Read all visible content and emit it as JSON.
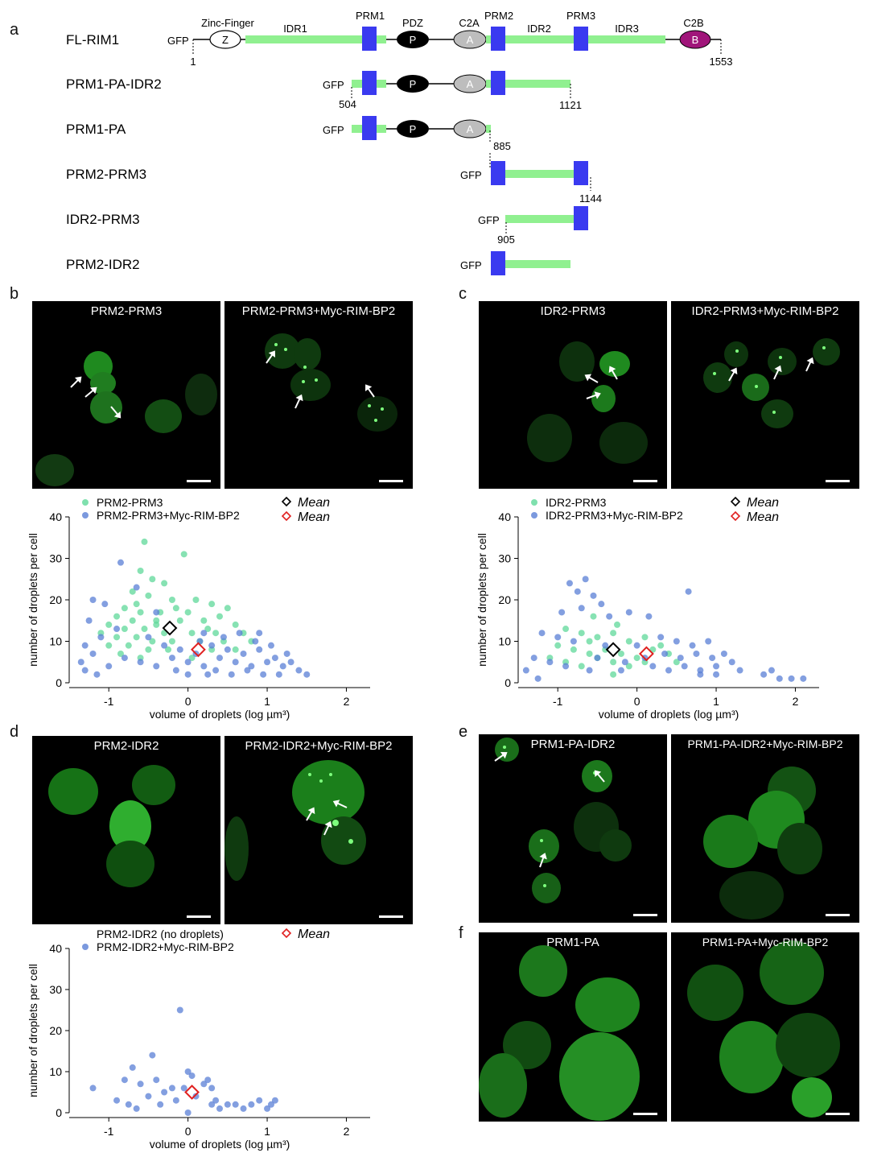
{
  "panel_letters": {
    "a": "a",
    "b": "b",
    "c": "c",
    "d": "d",
    "e": "e",
    "f": "f"
  },
  "domain_labels": {
    "zinc_finger": "Zinc-Finger",
    "idr1": "IDR1",
    "prm1": "PRM1",
    "pdz": "PDZ",
    "c2a": "C2A",
    "prm2": "PRM2",
    "idr2": "IDR2",
    "prm3": "PRM3",
    "idr3": "IDR3",
    "c2b": "C2B",
    "z": "Z",
    "p": "P",
    "a": "A",
    "b": "B",
    "gfp": "GFP"
  },
  "constructs": [
    {
      "name": "FL-RIM1",
      "start": "1",
      "end": "1553"
    },
    {
      "name": "PRM1-PA-IDR2",
      "start": "504",
      "end": "1121"
    },
    {
      "name": "PRM1-PA",
      "end": "885"
    },
    {
      "name": "PRM2-PRM3",
      "end": "1144"
    },
    {
      "name": "IDR2-PRM3",
      "start": "905"
    },
    {
      "name": "PRM2-IDR2"
    }
  ],
  "micrographs": {
    "b1": "PRM2-PRM3",
    "b2": "PRM2-PRM3+Myc-RIM-BP2",
    "c1": "IDR2-PRM3",
    "c2": "IDR2-PRM3+Myc-RIM-BP2",
    "d1": "PRM2-IDR2",
    "d2": "PRM2-IDR2+Myc-RIM-BP2",
    "e1": "PRM1-PA-IDR2",
    "e2": "PRM1-PA-IDR2+Myc-RIM-BP2",
    "f1": "PRM1-PA",
    "f2": "PRM1-PA+Myc-RIM-BP2"
  },
  "colors": {
    "green_series": "#5fd89a",
    "blue_series": "#5a7fd6",
    "mean_black": "#000000",
    "mean_red": "#e02020",
    "idr_bar": "#90f090",
    "prm_box": "#3a3af0",
    "c2b_fill": "#a0157a"
  },
  "chart_data": [
    {
      "id": "b",
      "type": "scatter",
      "xlabel": "volume of droplets (log µm³)",
      "ylabel": "number of droplets per cell",
      "xlim": [
        -1.5,
        2.3
      ],
      "ylim": [
        0,
        40
      ],
      "xticks": [
        -1,
        0,
        1,
        2
      ],
      "yticks": [
        0,
        10,
        20,
        30,
        40
      ],
      "legend": [
        {
          "label": "PRM2-PRM3",
          "color": "#5fd89a",
          "marker": "dot"
        },
        {
          "label": "PRM2-PRM3+Myc-RIM-BP2",
          "color": "#5a7fd6",
          "marker": "dot"
        },
        {
          "label": "Mean",
          "color": "#000000",
          "marker": "diamond"
        },
        {
          "label": "Mean",
          "color": "#e02020",
          "marker": "diamond"
        }
      ],
      "means": [
        {
          "series": "PRM2-PRM3",
          "x": -0.23,
          "y": 13.2
        },
        {
          "series": "PRM2-PRM3+Myc-RIM-BP2",
          "x": 0.13,
          "y": 8
        }
      ],
      "series": [
        {
          "name": "PRM2-PRM3",
          "color": "#5fd89a",
          "points": [
            [
              -0.55,
              34
            ],
            [
              -0.05,
              31
            ],
            [
              -0.6,
              27
            ],
            [
              -0.45,
              25
            ],
            [
              -0.3,
              24
            ],
            [
              -0.7,
              22
            ],
            [
              -0.5,
              21
            ],
            [
              -0.2,
              20
            ],
            [
              0.1,
              20
            ],
            [
              0.3,
              19
            ],
            [
              -0.8,
              18
            ],
            [
              -0.6,
              17
            ],
            [
              -0.35,
              17
            ],
            [
              0,
              17
            ],
            [
              0.4,
              16
            ],
            [
              0.5,
              18
            ],
            [
              -0.9,
              16
            ],
            [
              -0.7,
              15
            ],
            [
              -0.4,
              15
            ],
            [
              -0.1,
              15
            ],
            [
              0.2,
              15
            ],
            [
              0.6,
              14
            ],
            [
              -1.0,
              14
            ],
            [
              -0.8,
              13
            ],
            [
              -0.55,
              13
            ],
            [
              -0.3,
              12
            ],
            [
              0.05,
              12
            ],
            [
              0.35,
              12
            ],
            [
              0.7,
              12
            ],
            [
              -1.1,
              12
            ],
            [
              -0.9,
              11
            ],
            [
              -0.65,
              11
            ],
            [
              -0.45,
              10
            ],
            [
              -0.2,
              10
            ],
            [
              0.15,
              10
            ],
            [
              0.45,
              10
            ],
            [
              0.8,
              10
            ],
            [
              -1.0,
              9
            ],
            [
              -0.75,
              9
            ],
            [
              -0.5,
              8
            ],
            [
              -0.25,
              8
            ],
            [
              0.3,
              8
            ],
            [
              0.6,
              8
            ],
            [
              -0.85,
              7
            ],
            [
              -0.6,
              6
            ],
            [
              0.05,
              6
            ],
            [
              -0.4,
              14
            ],
            [
              0.25,
              13
            ],
            [
              -0.15,
              18
            ],
            [
              -0.65,
              19
            ]
          ]
        },
        {
          "name": "PRM2-PRM3+Myc-RIM-BP2",
          "color": "#5a7fd6",
          "points": [
            [
              -0.85,
              29
            ],
            [
              -0.65,
              23
            ],
            [
              -1.2,
              20
            ],
            [
              -1.05,
              19
            ],
            [
              -0.4,
              17
            ],
            [
              -1.25,
              15
            ],
            [
              -0.9,
              13
            ],
            [
              -1.1,
              11
            ],
            [
              -1.3,
              9
            ],
            [
              -1.2,
              7
            ],
            [
              -1.35,
              5
            ],
            [
              -1.3,
              3
            ],
            [
              -1.15,
              2
            ],
            [
              -1.0,
              4
            ],
            [
              -0.8,
              6
            ],
            [
              -0.6,
              5
            ],
            [
              -0.4,
              4
            ],
            [
              -0.2,
              6
            ],
            [
              0,
              5
            ],
            [
              0.2,
              4
            ],
            [
              0.4,
              6
            ],
            [
              0.6,
              5
            ],
            [
              0.8,
              4
            ],
            [
              1.0,
              5
            ],
            [
              1.2,
              4
            ],
            [
              1.4,
              3
            ],
            [
              1.5,
              2
            ],
            [
              -0.3,
              9
            ],
            [
              -0.1,
              8
            ],
            [
              0.1,
              7
            ],
            [
              0.3,
              9
            ],
            [
              0.5,
              8
            ],
            [
              0.7,
              7
            ],
            [
              0.9,
              8
            ],
            [
              1.1,
              6
            ],
            [
              1.3,
              5
            ],
            [
              -0.5,
              11
            ],
            [
              0.2,
              12
            ],
            [
              0.45,
              11
            ],
            [
              0.65,
              12
            ],
            [
              0.85,
              10
            ],
            [
              1.05,
              9
            ],
            [
              0.0,
              2
            ],
            [
              0.25,
              2
            ],
            [
              0.55,
              2
            ],
            [
              0.75,
              3
            ],
            [
              0.95,
              2
            ],
            [
              1.15,
              2
            ],
            [
              -0.15,
              3
            ],
            [
              0.35,
              3
            ],
            [
              0.15,
              10
            ],
            [
              0.9,
              12
            ],
            [
              1.25,
              7
            ]
          ]
        }
      ]
    },
    {
      "id": "c",
      "type": "scatter",
      "xlabel": "volume of droplets (log µm³)",
      "ylabel": "number of droplets per cell",
      "xlim": [
        -1.5,
        2.3
      ],
      "ylim": [
        0,
        40
      ],
      "xticks": [
        -1,
        0,
        1,
        2
      ],
      "yticks": [
        0,
        10,
        20,
        30,
        40
      ],
      "legend": [
        {
          "label": "IDR2-PRM3",
          "color": "#5fd89a",
          "marker": "dot"
        },
        {
          "label": "IDR2-PRM3+Myc-RIM-BP2",
          "color": "#5a7fd6",
          "marker": "dot"
        },
        {
          "label": "Mean",
          "color": "#000000",
          "marker": "diamond"
        },
        {
          "label": "Mean",
          "color": "#e02020",
          "marker": "diamond"
        }
      ],
      "means": [
        {
          "series": "IDR2-PRM3",
          "x": -0.3,
          "y": 8
        },
        {
          "series": "IDR2-PRM3+Myc-RIM-BP2",
          "x": 0.12,
          "y": 7
        }
      ],
      "series": [
        {
          "name": "IDR2-PRM3",
          "color": "#5fd89a",
          "points": [
            [
              -0.9,
              13
            ],
            [
              -0.7,
              12
            ],
            [
              -0.5,
              11
            ],
            [
              -0.3,
              12
            ],
            [
              -0.1,
              10
            ],
            [
              0.1,
              11
            ],
            [
              0.3,
              9
            ],
            [
              -1.0,
              9
            ],
            [
              -0.8,
              8
            ],
            [
              -0.6,
              7
            ],
            [
              -0.4,
              8
            ],
            [
              -0.2,
              7
            ],
            [
              0.0,
              6
            ],
            [
              0.2,
              8
            ],
            [
              0.4,
              7
            ],
            [
              -1.1,
              6
            ],
            [
              -0.9,
              5
            ],
            [
              -0.7,
              4
            ],
            [
              -0.5,
              6
            ],
            [
              -0.3,
              5
            ],
            [
              -0.1,
              4
            ],
            [
              0.1,
              5
            ],
            [
              -0.6,
              10
            ],
            [
              -0.25,
              14
            ],
            [
              -0.55,
              16
            ],
            [
              -0.3,
              2
            ],
            [
              0.5,
              5
            ]
          ]
        },
        {
          "name": "IDR2-PRM3+Myc-RIM-BP2",
          "color": "#5a7fd6",
          "points": [
            [
              -0.85,
              24
            ],
            [
              -0.65,
              25
            ],
            [
              -0.75,
              22
            ],
            [
              -0.55,
              21
            ],
            [
              -0.45,
              19
            ],
            [
              0.65,
              22
            ],
            [
              -0.95,
              17
            ],
            [
              -0.7,
              18
            ],
            [
              -0.35,
              16
            ],
            [
              -0.1,
              17
            ],
            [
              0.15,
              16
            ],
            [
              -1.2,
              12
            ],
            [
              -1.0,
              11
            ],
            [
              -0.8,
              10
            ],
            [
              -0.4,
              9
            ],
            [
              0.0,
              9
            ],
            [
              0.3,
              11
            ],
            [
              0.5,
              10
            ],
            [
              0.7,
              9
            ],
            [
              0.9,
              10
            ],
            [
              -1.3,
              6
            ],
            [
              -1.1,
              5
            ],
            [
              -0.9,
              4
            ],
            [
              -0.6,
              3
            ],
            [
              -0.2,
              3
            ],
            [
              0.2,
              4
            ],
            [
              0.4,
              3
            ],
            [
              0.6,
              4
            ],
            [
              0.8,
              3
            ],
            [
              1.0,
              4
            ],
            [
              1.2,
              5
            ],
            [
              1.0,
              2
            ],
            [
              0.8,
              2
            ],
            [
              1.3,
              3
            ],
            [
              1.6,
              2
            ],
            [
              1.7,
              3
            ],
            [
              1.8,
              1
            ],
            [
              1.95,
              1
            ],
            [
              2.1,
              1
            ],
            [
              -1.4,
              3
            ],
            [
              -1.25,
              1
            ],
            [
              0.1,
              6
            ],
            [
              0.35,
              7
            ],
            [
              0.55,
              6
            ],
            [
              0.75,
              7
            ],
            [
              0.95,
              6
            ],
            [
              1.1,
              7
            ],
            [
              -0.5,
              6
            ],
            [
              -0.15,
              5
            ]
          ]
        }
      ]
    },
    {
      "id": "d",
      "type": "scatter",
      "xlabel": "volume of droplets (log µm³)",
      "ylabel": "number of droplets per cell",
      "xlim": [
        -1.5,
        2.3
      ],
      "ylim": [
        0,
        40
      ],
      "xticks": [
        -1,
        0,
        1,
        2
      ],
      "yticks": [
        0,
        10,
        20,
        30,
        40
      ],
      "legend": [
        {
          "label": "PRM2-IDR2 (no droplets)",
          "color": "",
          "marker": "none"
        },
        {
          "label": "PRM2-IDR2+Myc-RIM-BP2",
          "color": "#5a7fd6",
          "marker": "dot"
        },
        {
          "label": "Mean",
          "color": "#e02020",
          "marker": "diamond"
        }
      ],
      "means": [
        {
          "series": "PRM2-IDR2+Myc-RIM-BP2",
          "x": 0.05,
          "y": 5
        }
      ],
      "series": [
        {
          "name": "PRM2-IDR2+Myc-RIM-BP2",
          "color": "#5a7fd6",
          "points": [
            [
              -0.1,
              25
            ],
            [
              -0.45,
              14
            ],
            [
              -1.2,
              6
            ],
            [
              -0.7,
              11
            ],
            [
              -0.8,
              8
            ],
            [
              -0.6,
              7
            ],
            [
              -0.4,
              8
            ],
            [
              -0.2,
              6
            ],
            [
              0.0,
              10
            ],
            [
              0.05,
              9
            ],
            [
              0.2,
              7
            ],
            [
              0.25,
              8
            ],
            [
              0.3,
              6
            ],
            [
              -0.3,
              5
            ],
            [
              -0.5,
              4
            ],
            [
              -0.9,
              3
            ],
            [
              -0.75,
              2
            ],
            [
              -0.65,
              1
            ],
            [
              -0.35,
              2
            ],
            [
              -0.15,
              3
            ],
            [
              0.1,
              4
            ],
            [
              0.35,
              3
            ],
            [
              0.3,
              2
            ],
            [
              0.4,
              1
            ],
            [
              0.5,
              2
            ],
            [
              0.6,
              2
            ],
            [
              0.7,
              1
            ],
            [
              0.8,
              2
            ],
            [
              0.9,
              3
            ],
            [
              1.0,
              1
            ],
            [
              1.05,
              2
            ],
            [
              1.1,
              3
            ],
            [
              0.0,
              0
            ],
            [
              -0.05,
              6
            ]
          ]
        }
      ]
    }
  ]
}
